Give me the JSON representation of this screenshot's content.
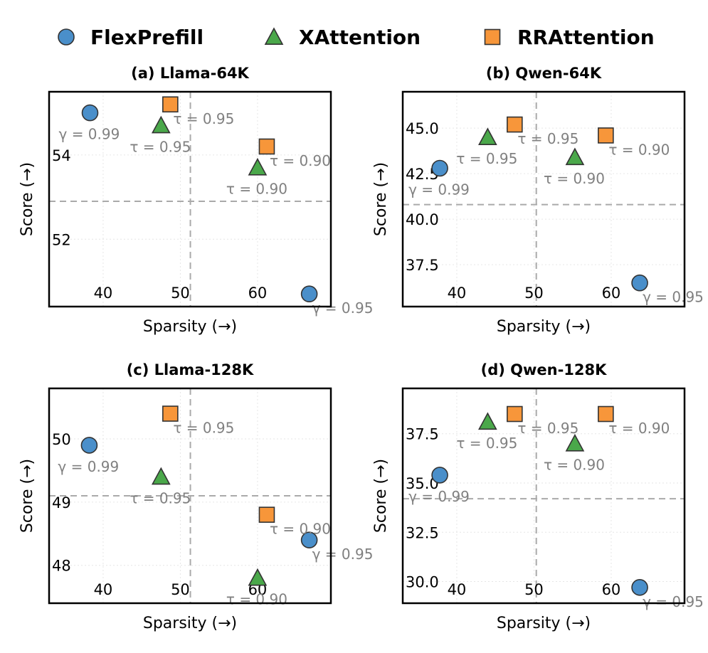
{
  "legend": [
    {
      "label": "FlexPrefill",
      "marker": "circle",
      "color": "#4a8fca"
    },
    {
      "label": "XAttention",
      "marker": "triangle",
      "color": "#4aa84a"
    },
    {
      "label": "RRAttention",
      "marker": "square",
      "color": "#f7963a"
    }
  ],
  "chart_data": [
    {
      "type": "scatter",
      "title": "(a) Llama-64K",
      "xlabel": "Sparsity (→)",
      "ylabel": "Score (→)",
      "xlim": [
        33,
        69.5
      ],
      "ylim": [
        50.4,
        55.5
      ],
      "xticks": [
        40,
        50,
        60
      ],
      "xtick_labels": [
        "40",
        "50",
        "60"
      ],
      "yticks": [
        52,
        54
      ],
      "ytick_labels": [
        "52",
        "54"
      ],
      "ref_x": 51.3,
      "ref_y": 52.9,
      "points": [
        {
          "series": "FlexPrefill",
          "x": 38.3,
          "y": 55.0,
          "label": "γ = 0.99",
          "label_pos": "below-left"
        },
        {
          "series": "FlexPrefill",
          "x": 66.7,
          "y": 50.7,
          "label": "γ = 0.95",
          "label_pos": "below-right"
        },
        {
          "series": "XAttention",
          "x": 47.5,
          "y": 54.7,
          "label": "τ = 0.95",
          "label_pos": "below-left"
        },
        {
          "series": "XAttention",
          "x": 60.0,
          "y": 53.7,
          "label": "τ = 0.90",
          "label_pos": "below-left"
        },
        {
          "series": "RRAttention",
          "x": 48.7,
          "y": 55.2,
          "label": "τ = 0.95",
          "label_pos": "below-right"
        },
        {
          "series": "RRAttention",
          "x": 61.2,
          "y": 54.2,
          "label": "τ = 0.90",
          "label_pos": "below-right"
        }
      ]
    },
    {
      "type": "scatter",
      "title": "(b) Qwen-64K",
      "xlabel": "Sparsity (→)",
      "ylabel": "Score (→)",
      "xlim": [
        33,
        69.5
      ],
      "ylim": [
        35.2,
        47.0
      ],
      "xticks": [
        40,
        50,
        60
      ],
      "xtick_labels": [
        "40",
        "50",
        "60"
      ],
      "yticks": [
        37.5,
        40.0,
        42.5,
        45.0
      ],
      "ytick_labels": [
        "37.5",
        "40.0",
        "42.5",
        "45.0"
      ],
      "ref_x": 50.3,
      "ref_y": 40.8,
      "points": [
        {
          "series": "FlexPrefill",
          "x": 37.8,
          "y": 42.8,
          "label": "γ = 0.99",
          "label_pos": "below-left"
        },
        {
          "series": "FlexPrefill",
          "x": 63.7,
          "y": 36.5,
          "label": "γ = 0.95",
          "label_pos": "below-right"
        },
        {
          "series": "XAttention",
          "x": 44.0,
          "y": 44.5,
          "label": "τ = 0.95",
          "label_pos": "below-left"
        },
        {
          "series": "XAttention",
          "x": 55.3,
          "y": 43.4,
          "label": "τ = 0.90",
          "label_pos": "below-left"
        },
        {
          "series": "RRAttention",
          "x": 47.5,
          "y": 45.2,
          "label": "τ = 0.95",
          "label_pos": "below-right"
        },
        {
          "series": "RRAttention",
          "x": 59.3,
          "y": 44.6,
          "label": "τ = 0.90",
          "label_pos": "below-right"
        }
      ]
    },
    {
      "type": "scatter",
      "title": "(c) Llama-128K",
      "xlabel": "Sparsity (→)",
      "ylabel": "Score (→)",
      "xlim": [
        33,
        69.5
      ],
      "ylim": [
        47.4,
        50.8
      ],
      "xticks": [
        40,
        50,
        60
      ],
      "xtick_labels": [
        "40",
        "50",
        "60"
      ],
      "yticks": [
        48,
        49,
        50
      ],
      "ytick_labels": [
        "48",
        "49",
        "50"
      ],
      "ref_x": 51.3,
      "ref_y": 49.1,
      "points": [
        {
          "series": "FlexPrefill",
          "x": 38.2,
          "y": 49.9,
          "label": "γ = 0.99",
          "label_pos": "below-left"
        },
        {
          "series": "FlexPrefill",
          "x": 66.7,
          "y": 48.4,
          "label": "γ = 0.95",
          "label_pos": "below-right"
        },
        {
          "series": "XAttention",
          "x": 47.5,
          "y": 49.4,
          "label": "τ = 0.95",
          "label_pos": "below-left"
        },
        {
          "series": "XAttention",
          "x": 60.0,
          "y": 47.8,
          "label": "τ = 0.90",
          "label_pos": "below-left"
        },
        {
          "series": "RRAttention",
          "x": 48.7,
          "y": 50.4,
          "label": "τ = 0.95",
          "label_pos": "below-right"
        },
        {
          "series": "RRAttention",
          "x": 61.2,
          "y": 48.8,
          "label": "τ = 0.90",
          "label_pos": "below-right"
        }
      ]
    },
    {
      "type": "scatter",
      "title": "(d) Qwen-128K",
      "xlabel": "Sparsity (→)",
      "ylabel": "Score (→)",
      "xlim": [
        33,
        69.5
      ],
      "ylim": [
        28.9,
        39.8
      ],
      "xticks": [
        40,
        50,
        60
      ],
      "xtick_labels": [
        "40",
        "50",
        "60"
      ],
      "yticks": [
        30.0,
        32.5,
        35.0,
        37.5
      ],
      "ytick_labels": [
        "30.0",
        "32.5",
        "35.0",
        "37.5"
      ],
      "ref_x": 50.3,
      "ref_y": 34.2,
      "points": [
        {
          "series": "FlexPrefill",
          "x": 37.8,
          "y": 35.4,
          "label": "γ = 0.99",
          "label_pos": "below-left"
        },
        {
          "series": "FlexPrefill",
          "x": 63.7,
          "y": 29.7,
          "label": "γ = 0.95",
          "label_pos": "below-right"
        },
        {
          "series": "XAttention",
          "x": 44.0,
          "y": 38.1,
          "label": "τ = 0.95",
          "label_pos": "below-left"
        },
        {
          "series": "XAttention",
          "x": 55.3,
          "y": 37.0,
          "label": "τ = 0.90",
          "label_pos": "below-left"
        },
        {
          "series": "RRAttention",
          "x": 47.5,
          "y": 38.5,
          "label": "τ = 0.95",
          "label_pos": "below-right"
        },
        {
          "series": "RRAttention",
          "x": 59.3,
          "y": 38.5,
          "label": "τ = 0.90",
          "label_pos": "below-right"
        }
      ]
    }
  ]
}
